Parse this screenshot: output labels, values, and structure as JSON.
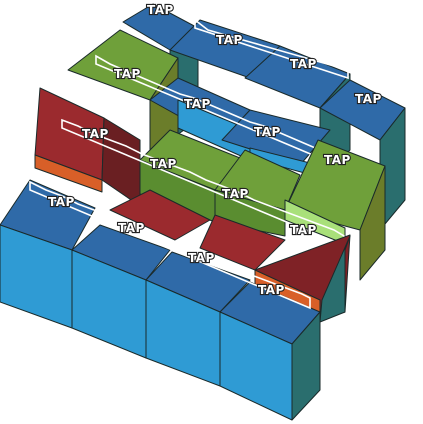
{
  "game": {
    "tap_label": "TAP",
    "palette": {
      "blue_top": "#2f6aa8",
      "blue_front": "#2f9bd4",
      "blue_side": "#2a6e6e",
      "green_top": "#6fa03a",
      "green_front": "#5a8d30",
      "green_side": "#6b7d2a",
      "red_top": "#9b2a2e",
      "red_front": "#7f2226",
      "red_side": "#6a1f22",
      "orange_trim": "#d85f28",
      "light_green": "#a9e07a"
    }
  }
}
